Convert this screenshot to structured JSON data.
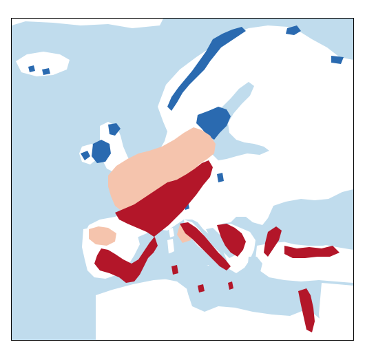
{
  "map": {
    "style": "choropleth raster, no labels, no legend, no title",
    "colors": {
      "background": "#ffffff",
      "sea": "#c0dced",
      "land_no_data": "#ffffff",
      "blue": "#2a6ab0",
      "light_red": "#f5c4ad",
      "red": "#b31629",
      "frame": "#000000"
    },
    "categories": [
      {
        "key": "blue",
        "color": "#2a6ab0"
      },
      {
        "key": "light_red",
        "color": "#f5c4ad"
      },
      {
        "key": "red",
        "color": "#b31629"
      }
    ]
  }
}
